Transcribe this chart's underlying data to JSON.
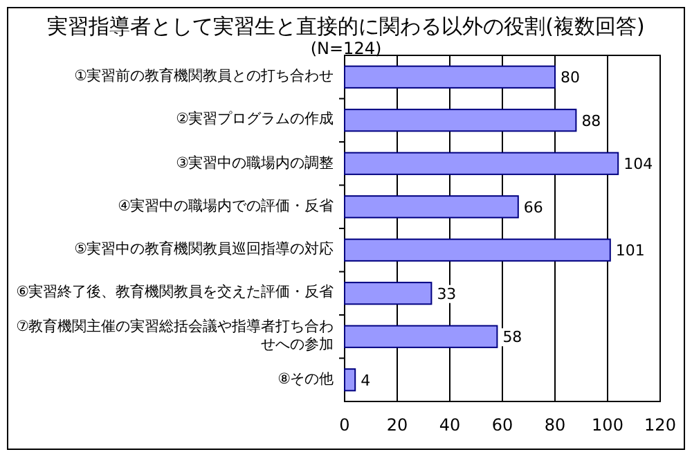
{
  "chart_data": {
    "type": "bar",
    "orientation": "horizontal",
    "title": "実習指導者として実習生と直接的に関わる以外の役割(複数回答)",
    "subtitle": "(N=124)",
    "categories": [
      "①実習前の教育機関教員との打ち合わせ",
      "②実習プログラムの作成",
      "③実習中の職場内の調整",
      "④実習中の職場内での評価・反省",
      "⑤実習中の教育機関教員巡回指導の対応",
      "⑥実習終了後、教育機関教員を交えた評価・反省",
      "⑦教育機関主催の実習総括会議や指導者打ち合わせへの参加",
      "⑧その他"
    ],
    "values": [
      80,
      88,
      104,
      66,
      101,
      33,
      58,
      4
    ],
    "color": "#9999ff",
    "data_labels": true,
    "xlim": [
      0,
      120
    ],
    "xticks": [
      0,
      20,
      40,
      60,
      80,
      100,
      120
    ],
    "grid": "x"
  }
}
